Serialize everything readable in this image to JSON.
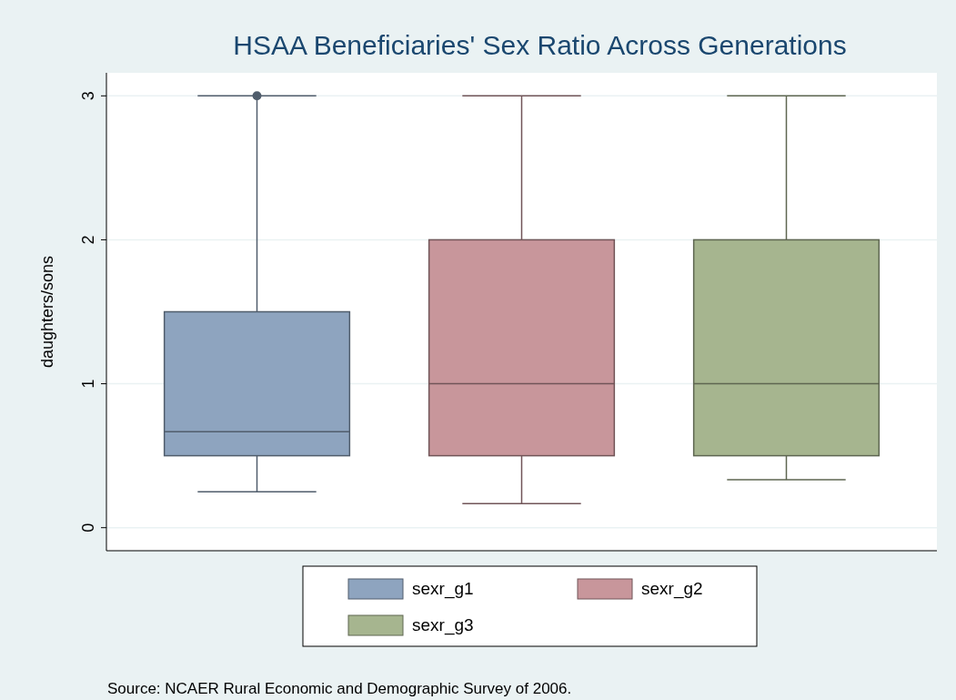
{
  "chart_data": {
    "type": "box",
    "title": "HSAA Beneficiaries' Sex Ratio Across Generations",
    "ylabel": "daughters/sons",
    "categories": [
      null
    ],
    "series": [
      {
        "name": "sexr_g1",
        "color": "#8ea4bf",
        "boxes": [
          {
            "low": 0.25,
            "q1": 0.5,
            "median": 0.667,
            "q3": 1.5,
            "high": 3,
            "outliers": [
              3
            ]
          }
        ]
      },
      {
        "name": "sexr_g2",
        "color": "#c8969b",
        "boxes": [
          {
            "low": 0.167,
            "q1": 0.5,
            "median": 1,
            "q3": 2,
            "high": 3
          }
        ]
      },
      {
        "name": "sexr_g3",
        "color": "#a6b58f",
        "boxes": [
          {
            "low": 0.333,
            "q1": 0.5,
            "median": 1,
            "q3": 2,
            "high": 3
          }
        ]
      }
    ],
    "ylim": [
      -0.16,
      3.16
    ],
    "yticks": [
      0,
      1,
      2,
      3
    ],
    "grid": "y",
    "legend": "bottom",
    "annotations": [
      "Source: NCAER Rural Economic and Demographic Survey of 2006."
    ]
  }
}
